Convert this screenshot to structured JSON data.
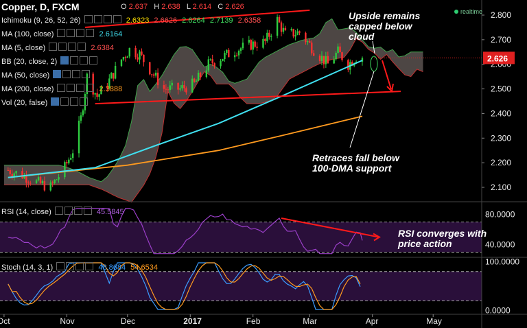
{
  "header": {
    "title": "Copper, D, FXCM",
    "open_key": "O",
    "open": "2.637",
    "high_key": "H",
    "high": "2.638",
    "low_key": "L",
    "low": "2.614",
    "close_key": "C",
    "close": "2.626",
    "realtime": "realtime"
  },
  "legend": {
    "ichimoku": {
      "label": "Ichimoku (9, 26, 52, 26)",
      "values": [
        "2.6323",
        "2.6626",
        "2.6264",
        "2.7139",
        "2.6358"
      ]
    },
    "ma100": {
      "label": "MA (100, close)",
      "value": "2.6164"
    },
    "ma5": {
      "label": "MA (5, close)",
      "value": "2.6384"
    },
    "bb": {
      "label": "BB (20, close, 2)"
    },
    "ma50": {
      "label": "MA (50, close)"
    },
    "ma200": {
      "label": "MA (200, close)",
      "value": "2.3888"
    },
    "vol": {
      "label": "Vol (20, false)"
    },
    "rsi": {
      "label": "RSI (14, close)",
      "value": "45.5845"
    },
    "stoch": {
      "label": "Stoch (14, 3, 1)",
      "k": "48.8684",
      "d": "54.6534"
    }
  },
  "annotations": {
    "upside_line1": "Upside remains",
    "upside_line2": "capped below",
    "upside_line3": "cloud",
    "retrace_line1": "Retraces fall below",
    "retrace_line2": "100-DMA support",
    "rsi_line1": "RSI converges with",
    "rsi_line2": "price action"
  },
  "colors": {
    "up_candle": "#2ecc40",
    "down_candle": "#ff3030",
    "ma100": "#40e0f0",
    "ma200": "#ff9a1f",
    "trendline": "#ff1a1a",
    "cloud": "#5a5250",
    "rsi_line": "#9b3fc9",
    "stoch_k": "#3b9cff",
    "stoch_d": "#ff9a1f",
    "price_badge": "#e02020"
  },
  "chart_data": [
    {
      "type": "candlestick",
      "symbol": "Copper",
      "timeframe": "D",
      "x_ticks": [
        "Oct",
        "Nov",
        "Dec",
        "2017",
        "Feb",
        "Mar",
        "Apr",
        "May"
      ],
      "y_ticks": [
        "2.800",
        "2.700",
        "2.600",
        "2.500",
        "2.400",
        "2.300",
        "2.200",
        "2.100"
      ],
      "ylim": [
        2.06,
        2.85
      ],
      "last_price": "2.626",
      "close_path": [
        [
          "2016-10-03",
          2.17
        ],
        [
          "2016-10-10",
          2.15
        ],
        [
          "2016-10-17",
          2.12
        ],
        [
          "2016-10-24",
          2.1
        ],
        [
          "2016-10-31",
          2.18
        ],
        [
          "2016-11-04",
          2.25
        ],
        [
          "2016-11-08",
          2.38
        ],
        [
          "2016-11-11",
          2.55
        ],
        [
          "2016-11-16",
          2.47
        ],
        [
          "2016-11-21",
          2.52
        ],
        [
          "2016-11-28",
          2.62
        ],
        [
          "2016-12-02",
          2.66
        ],
        [
          "2016-12-07",
          2.64
        ],
        [
          "2016-12-12",
          2.58
        ],
        [
          "2016-12-19",
          2.5
        ],
        [
          "2016-12-27",
          2.5
        ],
        [
          "2017-01-03",
          2.52
        ],
        [
          "2017-01-10",
          2.6
        ],
        [
          "2017-01-17",
          2.63
        ],
        [
          "2017-01-24",
          2.66
        ],
        [
          "2017-01-31",
          2.68
        ],
        [
          "2017-02-07",
          2.69
        ],
        [
          "2017-02-13",
          2.78
        ],
        [
          "2017-02-17",
          2.72
        ],
        [
          "2017-02-24",
          2.73
        ],
        [
          "2017-03-03",
          2.66
        ],
        [
          "2017-03-10",
          2.6
        ],
        [
          "2017-03-15",
          2.65
        ],
        [
          "2017-03-20",
          2.6
        ],
        [
          "2017-03-24",
          2.63
        ]
      ],
      "ma100_path": [
        [
          "2016-10-03",
          2.14
        ],
        [
          "2016-11-15",
          2.18
        ],
        [
          "2016-12-15",
          2.27
        ],
        [
          "2017-01-15",
          2.36
        ],
        [
          "2017-02-15",
          2.47
        ],
        [
          "2017-03-27",
          2.616
        ]
      ],
      "ma200_path": [
        [
          "2016-10-03",
          2.14
        ],
        [
          "2016-12-01",
          2.19
        ],
        [
          "2017-01-15",
          2.25
        ],
        [
          "2017-02-15",
          2.31
        ],
        [
          "2017-03-27",
          2.389
        ]
      ],
      "trendlines": [
        {
          "name": "upper",
          "from": [
            "2016-11-10",
            2.75
          ],
          "to": [
            "2017-03-01",
            2.82
          ]
        },
        {
          "name": "lower",
          "from": [
            "2016-11-15",
            2.44
          ],
          "to": [
            "2017-04-15",
            2.49
          ]
        }
      ]
    },
    {
      "type": "line",
      "name": "RSI (14, close)",
      "y_ticks": [
        "80.0000",
        "40.0000"
      ],
      "ylim": [
        25,
        95
      ],
      "last_value": 45.5845
    },
    {
      "type": "line",
      "name": "Stoch (14, 3, 1)",
      "y_ticks": [
        "100.0000",
        "0.0000"
      ],
      "ylim": [
        -5,
        105
      ],
      "last_k": 48.8684,
      "last_d": 54.6534
    }
  ]
}
